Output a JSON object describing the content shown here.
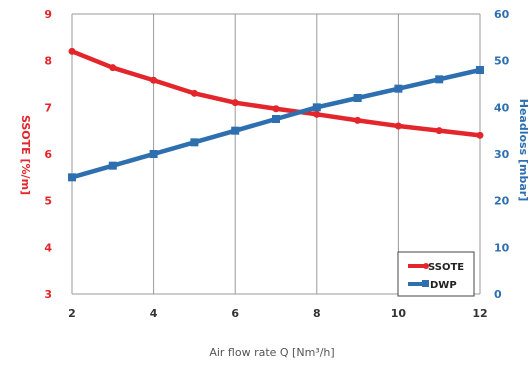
{
  "chart_data": {
    "type": "line",
    "x": [
      2,
      3,
      4,
      5,
      6,
      7,
      8,
      9,
      10,
      11,
      12
    ],
    "xlabel": "Air flow rate Q [Nm³/h]",
    "xlim": [
      2,
      12
    ],
    "xticks": [
      2,
      4,
      6,
      8,
      10,
      12
    ],
    "ylabel_left": "SSOTE [%/m]",
    "ylim_left": [
      3,
      9
    ],
    "yticks_left": [
      3,
      4,
      5,
      6,
      7,
      8,
      9
    ],
    "ylabel_right": "Headloss [mbar]",
    "ylim_right": [
      0,
      60
    ],
    "yticks_right": [
      0,
      10,
      20,
      30,
      40,
      50,
      60
    ],
    "grid": "vertical",
    "legend_position": "bottom-right",
    "series": [
      {
        "name": "SSOTE",
        "axis": "left",
        "color": "#e3262b",
        "marker": "circle",
        "values": [
          8.2,
          7.85,
          7.58,
          7.3,
          7.1,
          6.97,
          6.85,
          6.72,
          6.6,
          6.5,
          6.4
        ]
      },
      {
        "name": "DWP",
        "axis": "right",
        "color": "#2e6fb0",
        "marker": "square",
        "values": [
          25,
          27.5,
          30,
          32.5,
          35,
          37.5,
          40,
          42,
          44,
          46,
          48
        ]
      }
    ]
  }
}
